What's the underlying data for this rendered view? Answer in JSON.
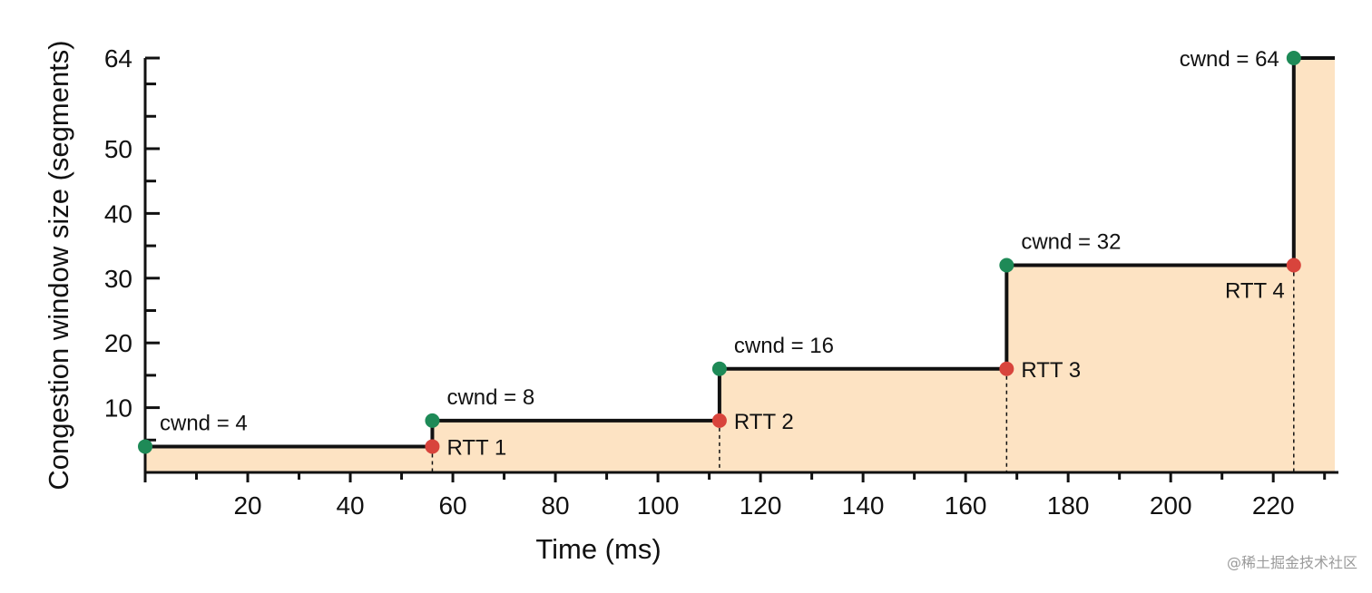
{
  "chart_data": {
    "type": "line",
    "xlabel": "Time (ms)",
    "ylabel": "Congestion window size (segments)",
    "xlim": [
      0,
      232
    ],
    "ylim": [
      0,
      64
    ],
    "x_ticks": [
      20,
      40,
      60,
      80,
      100,
      120,
      140,
      160,
      180,
      200,
      220
    ],
    "y_ticks": [
      10,
      20,
      30,
      40,
      50,
      64
    ],
    "x_minor_step": 10,
    "y_minor_step": 5,
    "grid": false,
    "fill_color": "#fde3c3",
    "line_color": "#111111",
    "cwnd_point_color": "#1e8a57",
    "rtt_point_color": "#d8443c",
    "series": [
      {
        "values": [
          {
            "x": 0,
            "y": 4
          },
          {
            "x": 56,
            "y": 4
          },
          {
            "x": 56,
            "y": 8
          },
          {
            "x": 112,
            "y": 8
          },
          {
            "x": 112,
            "y": 16
          },
          {
            "x": 168,
            "y": 16
          },
          {
            "x": 168,
            "y": 32
          },
          {
            "x": 224,
            "y": 32
          },
          {
            "x": 224,
            "y": 64
          },
          {
            "x": 232,
            "y": 64
          }
        ]
      }
    ],
    "cwnd_points": [
      {
        "x": 0,
        "y": 4,
        "label": "cwnd = 4"
      },
      {
        "x": 56,
        "y": 8,
        "label": "cwnd = 8"
      },
      {
        "x": 112,
        "y": 16,
        "label": "cwnd = 16"
      },
      {
        "x": 168,
        "y": 32,
        "label": "cwnd = 32"
      },
      {
        "x": 224,
        "y": 64,
        "label": "cwnd = 64"
      }
    ],
    "rtt_points": [
      {
        "x": 56,
        "y": 4,
        "label": "RTT 1"
      },
      {
        "x": 112,
        "y": 8,
        "label": "RTT 2"
      },
      {
        "x": 168,
        "y": 16,
        "label": "RTT 3"
      },
      {
        "x": 224,
        "y": 32,
        "label": "RTT 4"
      }
    ]
  },
  "watermark": "@稀土掘金技术社区"
}
